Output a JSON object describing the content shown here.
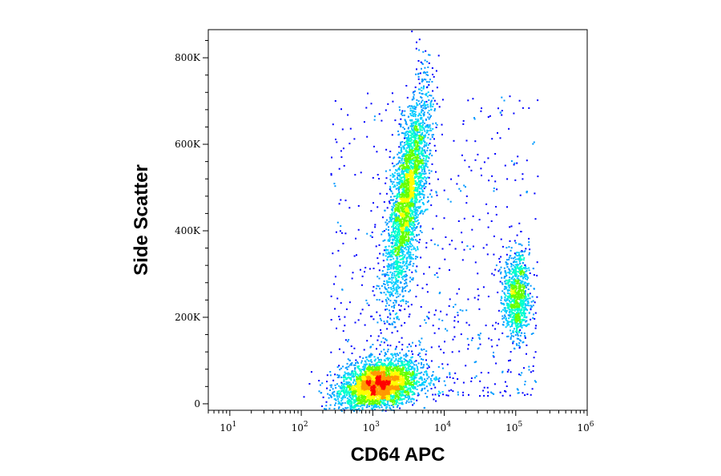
{
  "chart_data": {
    "type": "scatter",
    "style": "density-colored flow cytometry dot plot",
    "xlabel": "CD64 APC",
    "ylabel": "Side Scatter",
    "x_scale": "log",
    "xlim": [
      5,
      1000000
    ],
    "ylim": [
      -15000,
      865000
    ],
    "x_ticks": [
      {
        "base": "10",
        "exp": "1",
        "value": 10
      },
      {
        "base": "10",
        "exp": "2",
        "value": 100
      },
      {
        "base": "10",
        "exp": "3",
        "value": 1000
      },
      {
        "base": "10",
        "exp": "4",
        "value": 10000
      },
      {
        "base": "10",
        "exp": "5",
        "value": 100000
      },
      {
        "base": "10",
        "exp": "6",
        "value": 1000000
      }
    ],
    "y_ticks": [
      {
        "label": "0",
        "value": 0
      },
      {
        "label": "200K",
        "value": 200000
      },
      {
        "label": "400K",
        "value": 400000
      },
      {
        "label": "600K",
        "value": 600000
      },
      {
        "label": "800K",
        "value": 800000
      }
    ],
    "density_colors": [
      "#0000ff",
      "#0099ff",
      "#00ccff",
      "#00ffcc",
      "#66ff00",
      "#ffff00",
      "#ff9900",
      "#ff0000"
    ],
    "populations": [
      {
        "center_x": 1200,
        "center_y": 45000,
        "spread_log_x": 0.28,
        "spread_y": 28000,
        "count": 3200
      },
      {
        "center_x": 3000,
        "center_y": 480000,
        "spread_log_x": 0.11,
        "spread_y": 120000,
        "count": 2800
      },
      {
        "center_x": 100000,
        "center_y": 250000,
        "spread_log_x": 0.09,
        "spread_y": 50000,
        "count": 900
      }
    ],
    "grid": false,
    "legend": "none"
  }
}
